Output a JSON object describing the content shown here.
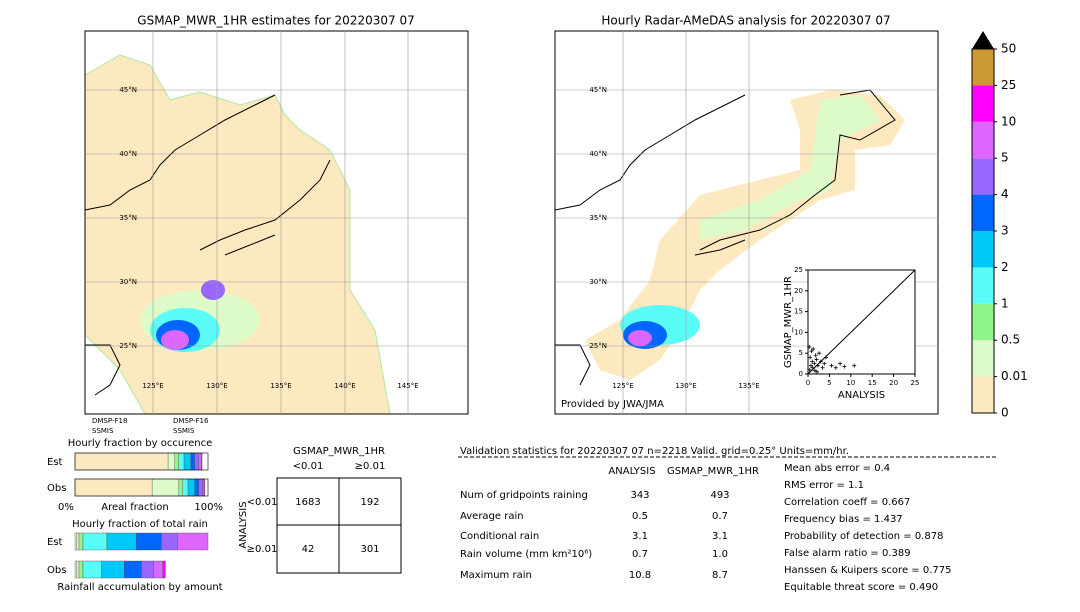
{
  "left_map": {
    "title": "GSMAP_MWR_1HR estimates for 20220307 07",
    "lat_labels": [
      "45°N",
      "40°N",
      "35°N",
      "30°N",
      "25°N"
    ],
    "lon_labels": [
      "125°E",
      "130°E",
      "135°E",
      "140°E",
      "145°E"
    ],
    "sensors": [
      "DMSP-F18",
      "SSMIS",
      "DMSP-F16",
      "SSMIS"
    ]
  },
  "right_map": {
    "title": "Hourly Radar-AMeDAS analysis for 20220307 07",
    "lat_labels": [
      "45°N",
      "40°N",
      "35°N",
      "30°N",
      "25°N"
    ],
    "lon_labels": [
      "125°E",
      "130°E",
      "135°E"
    ],
    "credit": "Provided by JWA/JMA"
  },
  "scatter": {
    "type": "scatter",
    "xlabel": "ANALYSIS",
    "ylabel": "GSMAP_MWR_1HR",
    "xlim": [
      0,
      25
    ],
    "ylim": [
      0,
      25
    ],
    "xticks": [
      0,
      5,
      10,
      15,
      20,
      25
    ],
    "yticks": [
      0,
      5,
      10,
      15,
      20,
      25
    ],
    "x": [
      0.3,
      0.5,
      0.8,
      1.0,
      1.2,
      1.5,
      1.8,
      2.0,
      2.3,
      2.6,
      3.0,
      3.4,
      3.8,
      4.2,
      0.4,
      0.7,
      1.1,
      1.6,
      2.1,
      5.5,
      6.5,
      7.5,
      8.5,
      10.8
    ],
    "y": [
      6.5,
      4.0,
      5.5,
      3.0,
      6.0,
      2.5,
      4.5,
      3.5,
      2.0,
      5.0,
      3.0,
      1.5,
      2.5,
      4.0,
      1.0,
      2.0,
      1.5,
      0.8,
      0.5,
      2.0,
      1.5,
      2.5,
      1.8,
      2.0
    ]
  },
  "colorbar": {
    "ticks": [
      0,
      0.01,
      0.5,
      1,
      2,
      3,
      4,
      5,
      10,
      25,
      50
    ],
    "colors": [
      "#fde9c0",
      "#dcfbc8",
      "#90f58c",
      "#5afcf8",
      "#00c8f8",
      "#0066ff",
      "#9966ff",
      "#dd66ff",
      "#ff00ff",
      "#cc9933"
    ],
    "over_color": "#000000"
  },
  "occurrence": {
    "title": "Hourly fraction by occurence",
    "rows": [
      "Est",
      "Obs"
    ],
    "est": [
      0.7,
      0.05,
      0.03,
      0.04,
      0.05,
      0.03,
      0.03,
      0.02,
      0.005,
      0
    ],
    "obs": [
      0.58,
      0.2,
      0.03,
      0.04,
      0.05,
      0.03,
      0.03,
      0.01,
      0.005,
      0
    ],
    "axis_left": "0%",
    "axis_label": "Areal fraction",
    "axis_right": "100%"
  },
  "total_rain": {
    "title": "Hourly fraction of total rain",
    "rows": [
      "Est",
      "Obs"
    ],
    "est": [
      0.01,
      0.02,
      0.03,
      0.18,
      0.22,
      0.19,
      0.12,
      0.23,
      0,
      0
    ],
    "obs": [
      0.01,
      0.02,
      0.03,
      0.14,
      0.17,
      0.13,
      0.09,
      0.07,
      0.02,
      0
    ],
    "footer": "Rainfall accumulation by amount"
  },
  "contingency": {
    "title": "GSMAP_MWR_1HR",
    "col_labels": [
      "<0.01",
      "≥0.01"
    ],
    "row_title": "ANALYSIS",
    "row_labels": [
      "<0.01",
      "≥0.01"
    ],
    "cells": [
      [
        1683,
        192
      ],
      [
        42,
        301
      ]
    ]
  },
  "validation": {
    "title": "Validation statistics for 20220307 07  n=2218 Valid. grid=0.25° Units=mm/hr.",
    "headers": [
      "ANALYSIS",
      "GSMAP_MWR_1HR"
    ],
    "rows": [
      [
        "Num of gridpoints raining",
        "343",
        "493"
      ],
      [
        "Average rain",
        "0.5",
        "0.7"
      ],
      [
        "Conditional rain",
        "3.1",
        "3.1"
      ],
      [
        "Rain volume (mm km²10⁶)",
        "0.7",
        "1.0"
      ],
      [
        "Maximum rain",
        "10.8",
        "8.7"
      ]
    ],
    "scores": [
      "Mean abs error =    0.4",
      "RMS error =    1.1",
      "Correlation coeff =  0.667",
      "Frequency bias =  1.437",
      "Probability of detection =  0.878",
      "False alarm ratio =  0.389",
      "Hanssen & Kuipers score =  0.775",
      "Equitable threat score =  0.490"
    ]
  }
}
